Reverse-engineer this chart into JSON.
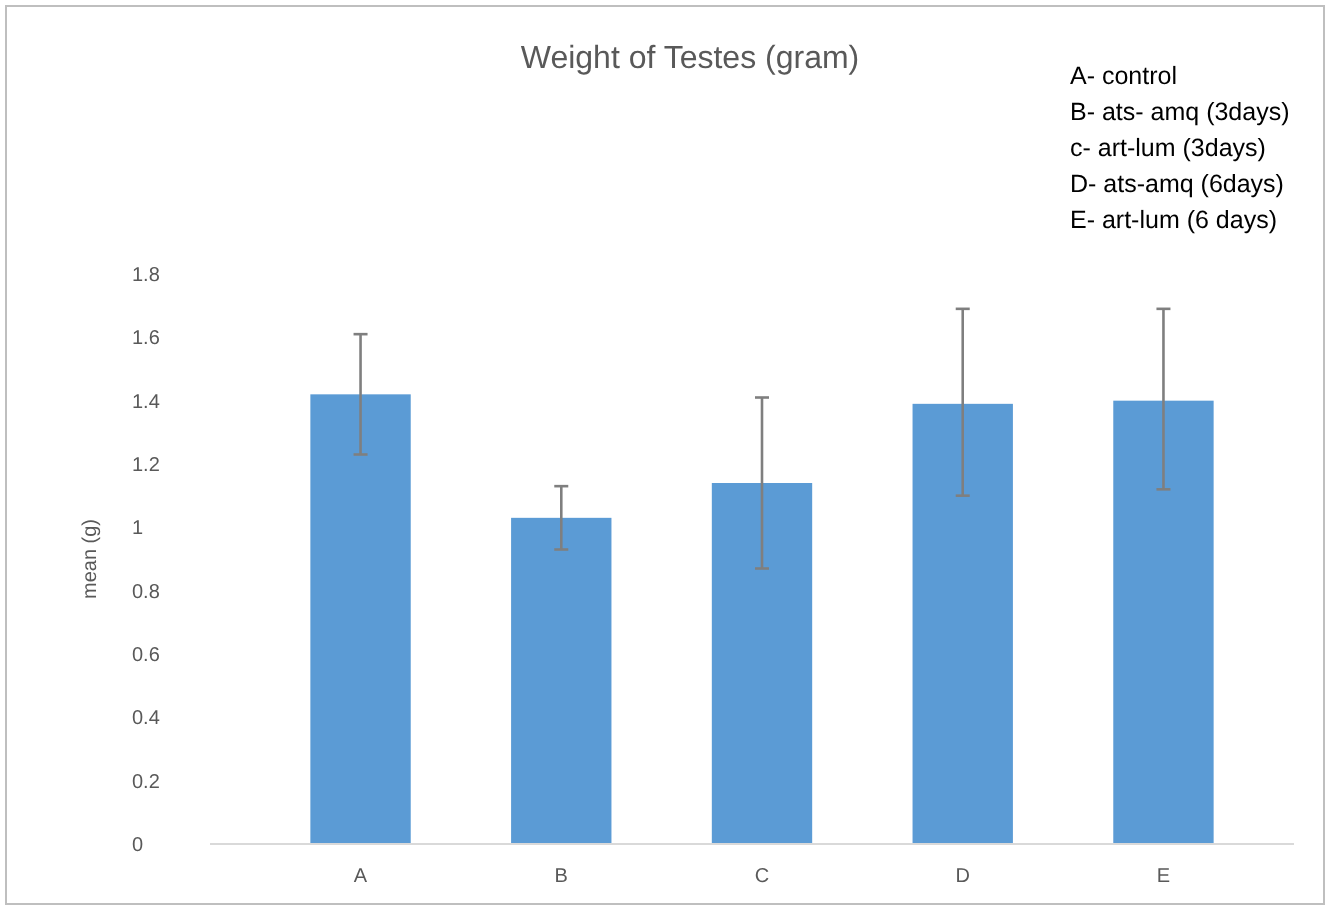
{
  "chart_data": {
    "type": "bar",
    "title": "Weight of Testes (gram)",
    "ylabel": "mean (g)",
    "categories": [
      "A",
      "B",
      "C",
      "D",
      "E"
    ],
    "values": [
      1.42,
      1.03,
      1.14,
      1.39,
      1.4
    ],
    "errors": [
      [
        1.23,
        1.61
      ],
      [
        0.93,
        1.13
      ],
      [
        0.87,
        1.41
      ],
      [
        1.1,
        1.69
      ],
      [
        1.12,
        1.69
      ]
    ],
    "color": "#5b9bd5",
    "ylim": [
      0,
      1.8
    ],
    "yticks": [
      0,
      0.2,
      0.4,
      0.6,
      0.8,
      1,
      1.2,
      1.4,
      1.6,
      1.8
    ],
    "grid": false,
    "annotations": [
      "A- control",
      "B- ats- amq (3days)",
      "c- art-lum (3days)",
      "D- ats-amq (6days)",
      "E- art-lum (6 days)"
    ]
  }
}
